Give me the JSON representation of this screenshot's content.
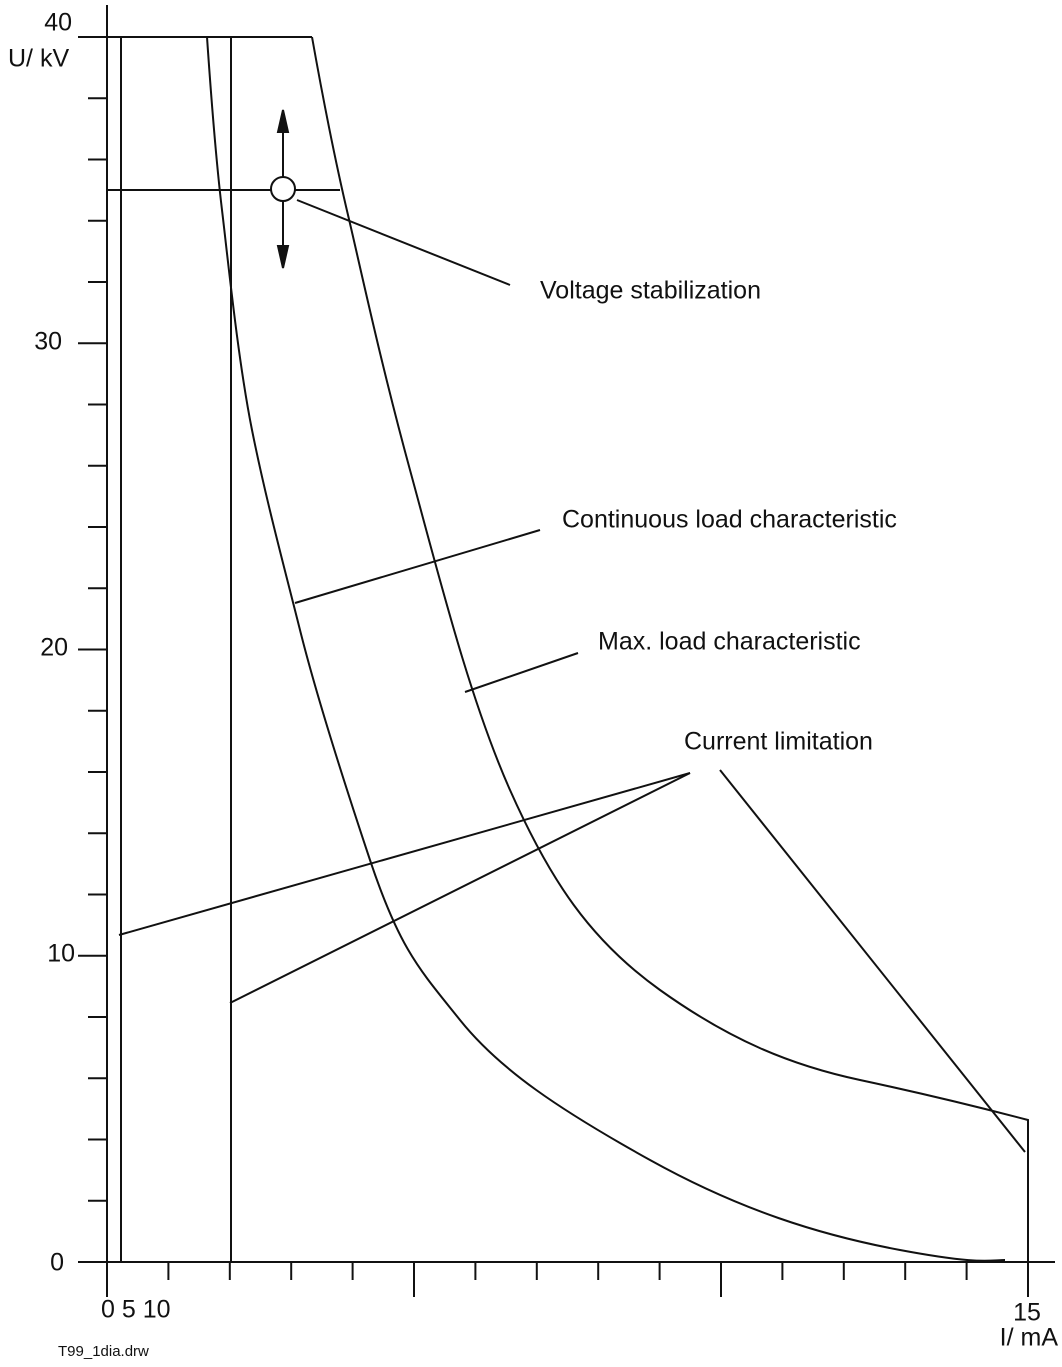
{
  "axes": {
    "y_label": "U/ kV",
    "x_label": "I/ mA",
    "y_tick_labels": [
      "40",
      "30",
      "20",
      "10",
      "0"
    ],
    "x_tick_labels": [
      "0 5 10",
      "15"
    ]
  },
  "annotations": {
    "voltage_stabilization": "Voltage stabilization",
    "continuous_load": "Continuous load characteristic",
    "max_load": "Max. load characteristic",
    "current_limitation": "Current limitation"
  },
  "footer": {
    "filename": "T99_1dia.drw"
  }
}
